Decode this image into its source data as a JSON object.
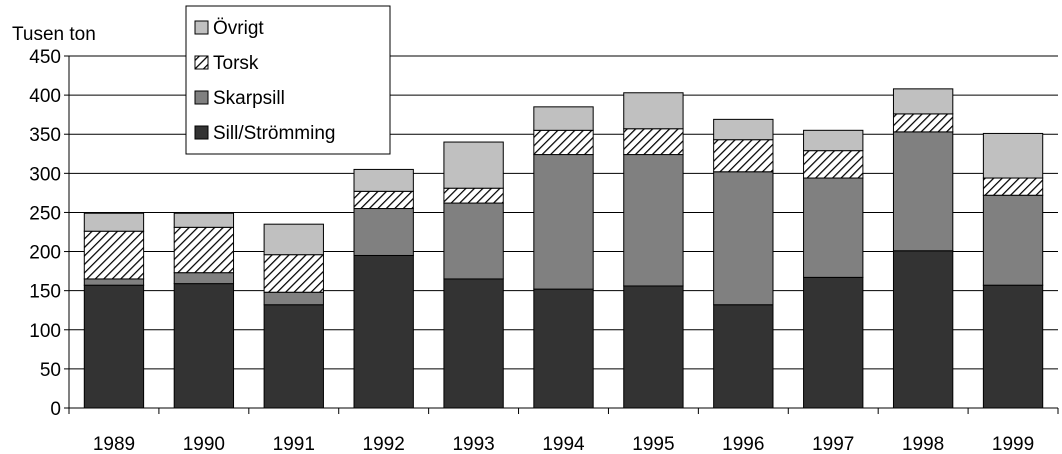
{
  "chart_data": {
    "type": "bar",
    "stacked": true,
    "ylabel": "Tusen ton",
    "ylim": [
      0,
      450
    ],
    "yticks": [
      0,
      50,
      100,
      150,
      200,
      250,
      300,
      350,
      400,
      450
    ],
    "grid": true,
    "legend_position": "top-left",
    "categories": [
      "1989",
      "1990",
      "1991",
      "1992",
      "1993",
      "1994",
      "1995",
      "1996",
      "1997",
      "1998",
      "1999"
    ],
    "series": [
      {
        "name": "Sill/Strömming",
        "color": "#333333",
        "values": [
          157,
          159,
          132,
          195,
          165,
          152,
          156,
          132,
          167,
          201,
          157
        ]
      },
      {
        "name": "Skarpsill",
        "color": "#808080",
        "values": [
          8,
          14,
          16,
          60,
          97,
          172,
          168,
          170,
          127,
          152,
          115
        ]
      },
      {
        "name": "Torsk",
        "color": "pattern:hatch",
        "values": [
          61,
          58,
          48,
          22,
          19,
          31,
          33,
          41,
          35,
          23,
          22
        ]
      },
      {
        "name": "Övrigt",
        "color": "#c0c0c0",
        "values": [
          23,
          18,
          39,
          28,
          59,
          30,
          46,
          26,
          26,
          32,
          57
        ]
      }
    ]
  }
}
